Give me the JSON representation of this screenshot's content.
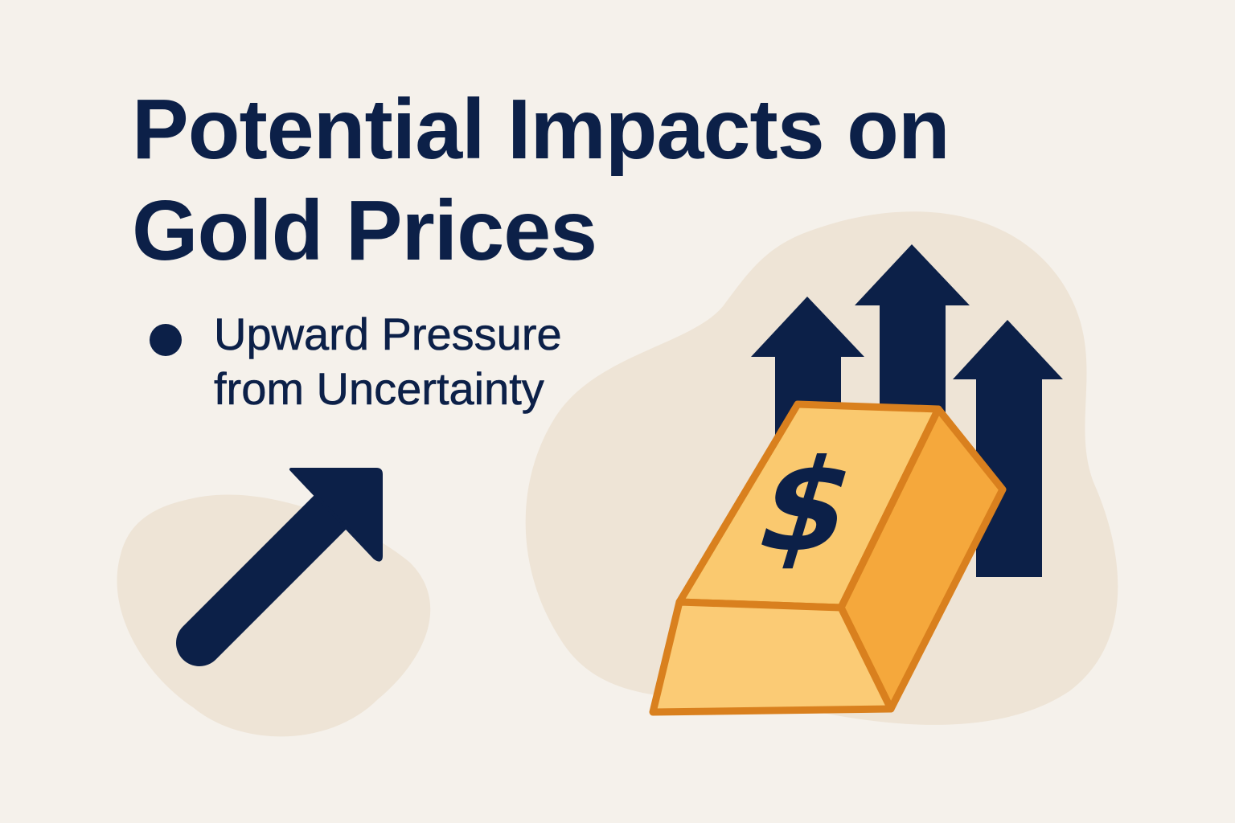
{
  "heading": {
    "line1": "Potential Impacts on",
    "line2": "Gold Prices"
  },
  "bullet": {
    "line1": "Upward Pressure",
    "line2": "from Uncertainty"
  },
  "gold_bar": {
    "symbol": "$"
  },
  "icons": [
    "diagonal-up-arrow-icon",
    "up-arrow-icon",
    "gold-bar-icon",
    "dollar-sign-icon"
  ],
  "colors": {
    "background": "#F5F1EB",
    "blob": "#EEE4D6",
    "navy": "#0C2048",
    "gold_top": "#FAC96F",
    "gold_side": "#F5A83C",
    "gold_front": "#FBCB75",
    "gold_outline": "#D9801E"
  }
}
